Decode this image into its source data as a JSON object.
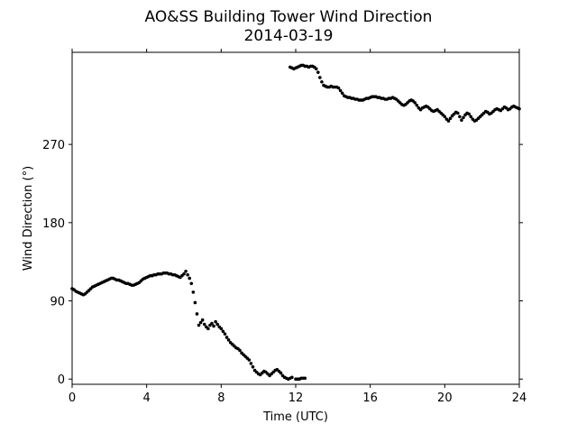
{
  "chart_data": {
    "type": "scatter",
    "title": "AO&SS Building Tower Wind Direction",
    "subtitle": "2014-03-19",
    "xlabel": "Time (UTC)",
    "ylabel": "Wind Direction (°)",
    "xlim": [
      0,
      24
    ],
    "ylim": [
      -6,
      376
    ],
    "xticks": [
      0,
      4,
      8,
      12,
      16,
      20,
      24
    ],
    "yticks": [
      0,
      90,
      180,
      270
    ],
    "grid": false,
    "legend": "none",
    "marker_color": "#000000",
    "series": [
      {
        "points": [
          [
            0.0,
            104
          ],
          [
            0.1,
            103
          ],
          [
            0.2,
            101
          ],
          [
            0.3,
            100
          ],
          [
            0.4,
            99
          ],
          [
            0.5,
            98
          ],
          [
            0.6,
            97
          ],
          [
            0.7,
            98
          ],
          [
            0.8,
            100
          ],
          [
            0.9,
            102
          ],
          [
            1.0,
            104
          ],
          [
            1.1,
            106
          ],
          [
            1.2,
            107
          ],
          [
            1.3,
            108
          ],
          [
            1.4,
            109
          ],
          [
            1.5,
            110
          ],
          [
            1.6,
            111
          ],
          [
            1.7,
            112
          ],
          [
            1.8,
            113
          ],
          [
            1.9,
            114
          ],
          [
            2.0,
            115
          ],
          [
            2.1,
            116
          ],
          [
            2.2,
            116
          ],
          [
            2.3,
            115
          ],
          [
            2.4,
            114
          ],
          [
            2.5,
            114
          ],
          [
            2.6,
            113
          ],
          [
            2.7,
            112
          ],
          [
            2.8,
            111
          ],
          [
            2.9,
            110
          ],
          [
            3.0,
            110
          ],
          [
            3.1,
            109
          ],
          [
            3.2,
            108
          ],
          [
            3.3,
            108
          ],
          [
            3.4,
            109
          ],
          [
            3.5,
            110
          ],
          [
            3.6,
            111
          ],
          [
            3.7,
            113
          ],
          [
            3.8,
            115
          ],
          [
            3.9,
            116
          ],
          [
            4.0,
            117
          ],
          [
            4.1,
            118
          ],
          [
            4.2,
            119
          ],
          [
            4.3,
            119
          ],
          [
            4.4,
            120
          ],
          [
            4.5,
            120
          ],
          [
            4.6,
            121
          ],
          [
            4.7,
            121
          ],
          [
            4.8,
            121
          ],
          [
            4.9,
            122
          ],
          [
            5.0,
            122
          ],
          [
            5.1,
            122
          ],
          [
            5.2,
            121
          ],
          [
            5.3,
            121
          ],
          [
            5.4,
            120
          ],
          [
            5.5,
            120
          ],
          [
            5.6,
            119
          ],
          [
            5.7,
            118
          ],
          [
            5.8,
            117
          ],
          [
            5.9,
            119
          ],
          [
            6.0,
            121
          ],
          [
            6.1,
            124
          ],
          [
            6.2,
            120
          ],
          [
            6.3,
            116
          ],
          [
            6.4,
            110
          ],
          [
            6.5,
            100
          ],
          [
            6.6,
            88
          ],
          [
            6.7,
            75
          ],
          [
            6.8,
            62
          ],
          [
            6.9,
            65
          ],
          [
            7.0,
            68
          ],
          [
            7.1,
            63
          ],
          [
            7.2,
            60
          ],
          [
            7.3,
            58
          ],
          [
            7.4,
            62
          ],
          [
            7.5,
            64
          ],
          [
            7.6,
            61
          ],
          [
            7.7,
            66
          ],
          [
            7.8,
            63
          ],
          [
            7.9,
            60
          ],
          [
            8.0,
            58
          ],
          [
            8.1,
            55
          ],
          [
            8.2,
            52
          ],
          [
            8.3,
            48
          ],
          [
            8.4,
            45
          ],
          [
            8.5,
            42
          ],
          [
            8.6,
            40
          ],
          [
            8.7,
            38
          ],
          [
            8.8,
            36
          ],
          [
            8.9,
            35
          ],
          [
            9.0,
            33
          ],
          [
            9.1,
            30
          ],
          [
            9.2,
            28
          ],
          [
            9.3,
            26
          ],
          [
            9.4,
            24
          ],
          [
            9.5,
            22
          ],
          [
            9.6,
            18
          ],
          [
            9.7,
            14
          ],
          [
            9.8,
            10
          ],
          [
            9.9,
            8
          ],
          [
            10.0,
            6
          ],
          [
            10.1,
            5
          ],
          [
            10.2,
            7
          ],
          [
            10.3,
            9
          ],
          [
            10.4,
            8
          ],
          [
            10.5,
            6
          ],
          [
            10.6,
            4
          ],
          [
            10.7,
            6
          ],
          [
            10.8,
            8
          ],
          [
            10.9,
            10
          ],
          [
            11.0,
            11
          ],
          [
            11.1,
            9
          ],
          [
            11.2,
            7
          ],
          [
            11.3,
            4
          ],
          [
            11.4,
            2
          ],
          [
            11.5,
            1
          ],
          [
            11.6,
            0
          ],
          [
            11.7,
            1
          ],
          [
            11.8,
            2
          ],
          [
            12.0,
            0
          ],
          [
            12.1,
            0
          ],
          [
            12.2,
            0
          ],
          [
            12.3,
            1
          ],
          [
            12.4,
            1
          ],
          [
            12.5,
            1
          ],
          [
            11.7,
            359
          ],
          [
            11.8,
            358
          ],
          [
            11.9,
            357
          ],
          [
            12.0,
            358
          ],
          [
            12.1,
            359
          ],
          [
            12.2,
            360
          ],
          [
            12.3,
            361
          ],
          [
            12.4,
            361
          ],
          [
            12.5,
            360
          ],
          [
            12.6,
            360
          ],
          [
            12.7,
            359
          ],
          [
            12.8,
            360
          ],
          [
            12.9,
            360
          ],
          [
            13.0,
            359
          ],
          [
            13.1,
            357
          ],
          [
            13.2,
            353
          ],
          [
            13.3,
            347
          ],
          [
            13.4,
            342
          ],
          [
            13.5,
            338
          ],
          [
            13.6,
            337
          ],
          [
            13.7,
            336
          ],
          [
            13.8,
            336
          ],
          [
            13.9,
            337
          ],
          [
            14.0,
            336
          ],
          [
            14.1,
            336
          ],
          [
            14.2,
            336
          ],
          [
            14.3,
            335
          ],
          [
            14.4,
            332
          ],
          [
            14.5,
            329
          ],
          [
            14.6,
            326
          ],
          [
            14.7,
            325
          ],
          [
            14.8,
            324
          ],
          [
            14.9,
            324
          ],
          [
            15.0,
            323
          ],
          [
            15.1,
            323
          ],
          [
            15.2,
            322
          ],
          [
            15.3,
            322
          ],
          [
            15.4,
            321
          ],
          [
            15.5,
            321
          ],
          [
            15.6,
            321
          ],
          [
            15.7,
            322
          ],
          [
            15.8,
            323
          ],
          [
            15.9,
            323
          ],
          [
            16.0,
            324
          ],
          [
            16.1,
            325
          ],
          [
            16.2,
            325
          ],
          [
            16.3,
            325
          ],
          [
            16.4,
            324
          ],
          [
            16.5,
            324
          ],
          [
            16.6,
            323
          ],
          [
            16.7,
            323
          ],
          [
            16.8,
            322
          ],
          [
            16.9,
            322
          ],
          [
            17.0,
            323
          ],
          [
            17.1,
            323
          ],
          [
            17.2,
            324
          ],
          [
            17.3,
            323
          ],
          [
            17.4,
            322
          ],
          [
            17.5,
            320
          ],
          [
            17.6,
            318
          ],
          [
            17.7,
            316
          ],
          [
            17.8,
            315
          ],
          [
            17.9,
            316
          ],
          [
            18.0,
            318
          ],
          [
            18.1,
            320
          ],
          [
            18.2,
            321
          ],
          [
            18.3,
            320
          ],
          [
            18.4,
            318
          ],
          [
            18.5,
            315
          ],
          [
            18.6,
            312
          ],
          [
            18.7,
            310
          ],
          [
            18.8,
            312
          ],
          [
            18.9,
            313
          ],
          [
            19.0,
            314
          ],
          [
            19.1,
            313
          ],
          [
            19.2,
            311
          ],
          [
            19.3,
            309
          ],
          [
            19.4,
            308
          ],
          [
            19.5,
            309
          ],
          [
            19.6,
            310
          ],
          [
            19.7,
            308
          ],
          [
            19.8,
            306
          ],
          [
            19.9,
            304
          ],
          [
            20.0,
            302
          ],
          [
            20.1,
            299
          ],
          [
            20.2,
            297
          ],
          [
            20.3,
            300
          ],
          [
            20.4,
            303
          ],
          [
            20.5,
            305
          ],
          [
            20.6,
            307
          ],
          [
            20.7,
            306
          ],
          [
            20.8,
            302
          ],
          [
            20.9,
            298
          ],
          [
            21.0,
            301
          ],
          [
            21.1,
            304
          ],
          [
            21.2,
            306
          ],
          [
            21.3,
            305
          ],
          [
            21.4,
            302
          ],
          [
            21.5,
            299
          ],
          [
            21.6,
            297
          ],
          [
            21.7,
            298
          ],
          [
            21.8,
            300
          ],
          [
            21.9,
            302
          ],
          [
            22.0,
            304
          ],
          [
            22.1,
            306
          ],
          [
            22.2,
            308
          ],
          [
            22.3,
            307
          ],
          [
            22.4,
            305
          ],
          [
            22.5,
            306
          ],
          [
            22.6,
            308
          ],
          [
            22.7,
            310
          ],
          [
            22.8,
            311
          ],
          [
            22.9,
            310
          ],
          [
            23.0,
            309
          ],
          [
            23.1,
            311
          ],
          [
            23.2,
            313
          ],
          [
            23.3,
            312
          ],
          [
            23.4,
            310
          ],
          [
            23.5,
            311
          ],
          [
            23.6,
            313
          ],
          [
            23.7,
            314
          ],
          [
            23.8,
            313
          ],
          [
            23.9,
            312
          ],
          [
            24.0,
            311
          ]
        ]
      }
    ]
  }
}
